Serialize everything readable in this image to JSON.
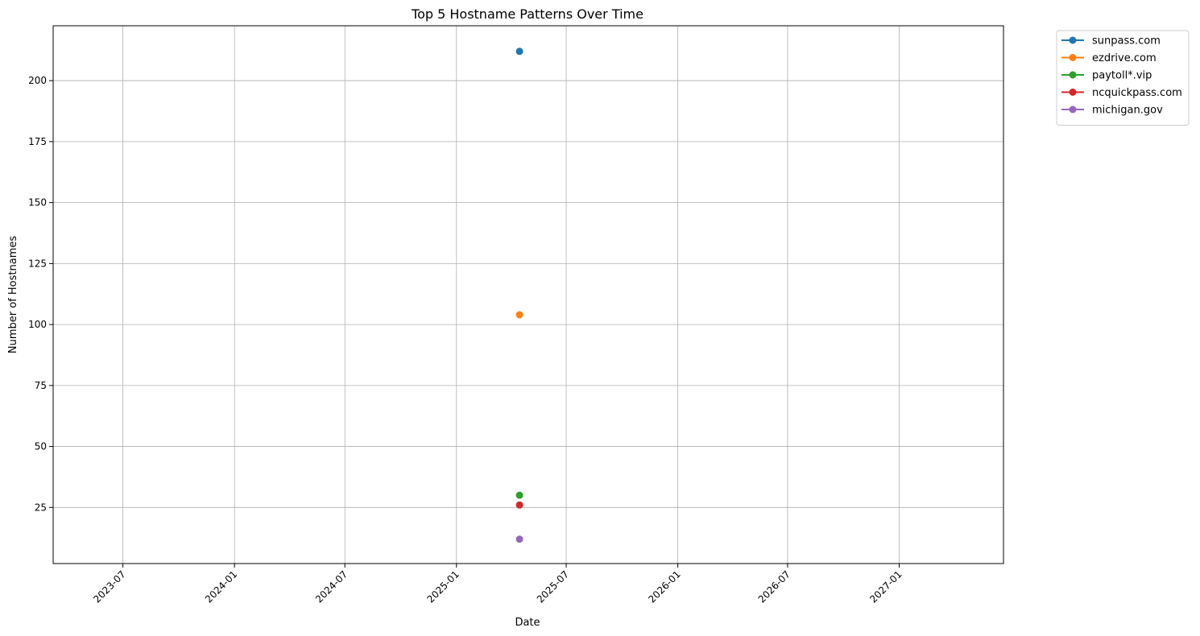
{
  "chart_data": {
    "type": "line",
    "title": "Top 5 Hostname Patterns Over Time",
    "xlabel": "Date",
    "ylabel": "Number of Hostnames",
    "x_axis": {
      "scale": "date",
      "range": [
        "2023-03-08",
        "2027-06-22"
      ],
      "ticks": [
        "2023-07",
        "2024-01",
        "2024-07",
        "2025-01",
        "2025-07",
        "2026-01",
        "2026-07",
        "2027-01"
      ],
      "tick_dates": [
        "2023-07-01",
        "2024-01-01",
        "2024-07-01",
        "2025-01-01",
        "2025-07-01",
        "2026-01-01",
        "2026-07-01",
        "2027-01-01"
      ],
      "tick_rotation": 45
    },
    "y_axis": {
      "range": [
        2,
        222.5
      ],
      "ticks": [
        25,
        50,
        75,
        100,
        125,
        150,
        175,
        200
      ]
    },
    "grid": true,
    "legend_position": "outside top-right",
    "series": [
      {
        "name": "sunpass.com",
        "color": "#1f77b4",
        "points": [
          {
            "x": "2025-04-15",
            "y": 212
          }
        ]
      },
      {
        "name": "ezdrive.com",
        "color": "#ff7f0e",
        "points": [
          {
            "x": "2025-04-15",
            "y": 104
          }
        ]
      },
      {
        "name": "paytoll*.vip",
        "color": "#2ca02c",
        "points": [
          {
            "x": "2025-04-15",
            "y": 30
          }
        ]
      },
      {
        "name": "ncquickpass.com",
        "color": "#d62728",
        "points": [
          {
            "x": "2025-04-15",
            "y": 26
          }
        ]
      },
      {
        "name": "michigan.gov",
        "color": "#9467bd",
        "points": [
          {
            "x": "2025-04-15",
            "y": 12
          }
        ]
      }
    ]
  }
}
